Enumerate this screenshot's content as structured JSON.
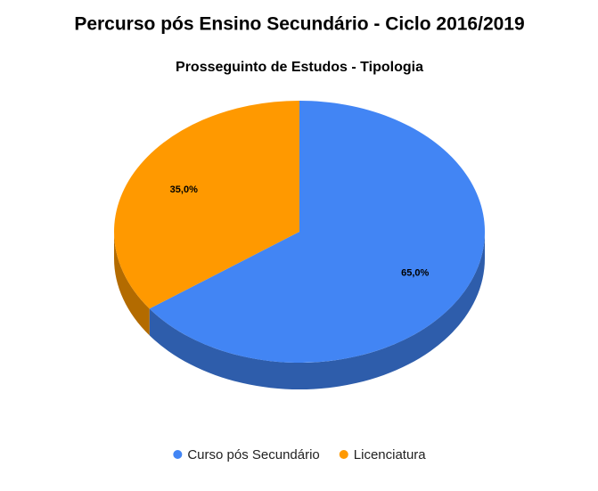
{
  "chart_data": {
    "type": "pie",
    "title": "Percurso pós Ensino Secundário - Ciclo 2016/2019",
    "subtitle": "Prosseguinto de Estudos - Tipologia",
    "categories": [
      "Curso pós Secundário",
      "Licenciatura"
    ],
    "values": [
      65,
      35
    ],
    "value_labels": [
      "65,0%",
      "35,0%"
    ],
    "colors": [
      "#4285f4",
      "#ff9900"
    ],
    "legend": "bottom"
  }
}
